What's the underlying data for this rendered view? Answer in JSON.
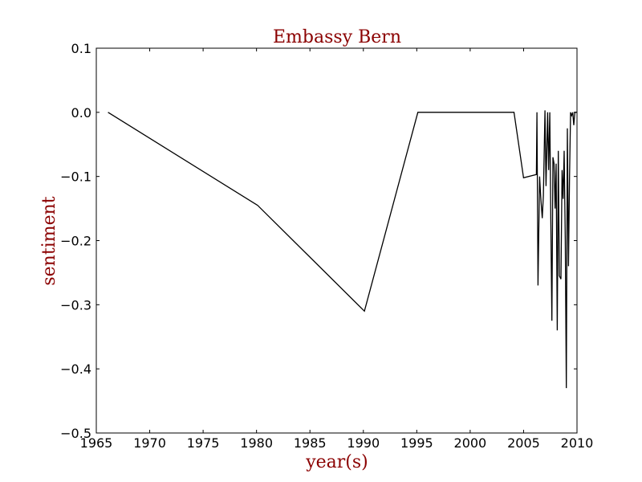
{
  "chart_data": {
    "type": "line",
    "title": "Embassy Bern",
    "xlabel": "year(s)",
    "ylabel": "sentiment",
    "xlim": [
      1965,
      2010
    ],
    "ylim": [
      -0.5,
      0.1
    ],
    "xticks": [
      1965,
      1970,
      1975,
      1980,
      1985,
      1990,
      1995,
      2000,
      2005,
      2010
    ],
    "yticks": [
      0.1,
      0.0,
      -0.1,
      -0.2,
      -0.3,
      -0.4,
      -0.5
    ],
    "ytick_labels": [
      "0.1",
      "0.0",
      "−0.1",
      "−0.2",
      "−0.3",
      "−0.4",
      "−0.5"
    ],
    "grid": false,
    "series": [
      {
        "color": "#000000",
        "x": [
          1966.1,
          1980.1,
          1990.1,
          1995.1,
          2004.1,
          2005.0,
          2006.2,
          2006.25,
          2006.35,
          2006.5,
          2006.6,
          2006.75,
          2006.85,
          2007.0,
          2007.1,
          2007.25,
          2007.35,
          2007.45,
          2007.55,
          2007.65,
          2007.75,
          2007.85,
          2007.95,
          2008.05,
          2008.15,
          2008.25,
          2008.35,
          2008.5,
          2008.6,
          2008.7,
          2008.8,
          2008.9,
          2009.0,
          2009.1,
          2009.2,
          2009.3,
          2009.4,
          2009.5,
          2009.6,
          2009.7,
          2009.8,
          2009.9,
          2010.0
        ],
        "y": [
          0.0,
          -0.145,
          -0.31,
          0.0,
          0.0,
          -0.102,
          -0.097,
          0.0,
          -0.27,
          -0.1,
          -0.13,
          -0.165,
          -0.13,
          0.003,
          -0.115,
          0.0,
          -0.09,
          0.0,
          -0.17,
          -0.325,
          -0.07,
          -0.08,
          -0.15,
          -0.08,
          -0.34,
          -0.06,
          -0.255,
          -0.26,
          -0.09,
          -0.135,
          -0.06,
          -0.2,
          -0.43,
          -0.025,
          -0.24,
          -0.1,
          0.0,
          -0.005,
          0.0,
          -0.02,
          0.0,
          0.0,
          0.0
        ]
      }
    ]
  }
}
